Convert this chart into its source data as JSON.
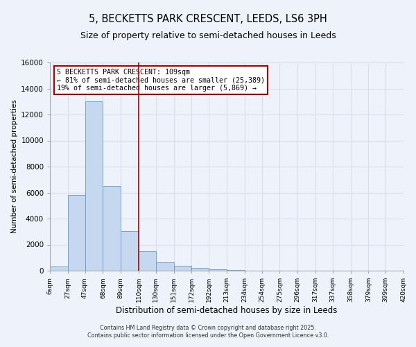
{
  "title": "5, BECKETTS PARK CRESCENT, LEEDS, LS6 3PH",
  "subtitle": "Size of property relative to semi-detached houses in Leeds",
  "xlabel": "Distribution of semi-detached houses by size in Leeds",
  "ylabel": "Number of semi-detached properties",
  "bin_labels": [
    "6sqm",
    "27sqm",
    "47sqm",
    "68sqm",
    "89sqm",
    "110sqm",
    "130sqm",
    "151sqm",
    "172sqm",
    "192sqm",
    "213sqm",
    "234sqm",
    "254sqm",
    "275sqm",
    "296sqm",
    "317sqm",
    "337sqm",
    "358sqm",
    "379sqm",
    "399sqm",
    "420sqm"
  ],
  "bin_edges": [
    6,
    27,
    47,
    68,
    89,
    110,
    130,
    151,
    172,
    192,
    213,
    234,
    254,
    275,
    296,
    317,
    337,
    358,
    379,
    399,
    420
  ],
  "bar_heights": [
    300,
    5800,
    13000,
    6500,
    3050,
    1500,
    650,
    350,
    200,
    100,
    50,
    0,
    0,
    0,
    0,
    0,
    0,
    0,
    0,
    0
  ],
  "bar_color": "#c5d8f0",
  "bar_edge_color": "#6699cc",
  "property_line_x": 110,
  "property_line_color": "#aa0000",
  "annotation_title": "5 BECKETTS PARK CRESCENT: 109sqm",
  "annotation_line1": "← 81% of semi-detached houses are smaller (25,389)",
  "annotation_line2": "19% of semi-detached houses are larger (5,869) →",
  "annotation_box_color": "#ffffff",
  "annotation_box_edge_color": "#aa0000",
  "ylim": [
    0,
    16000
  ],
  "yticks": [
    0,
    2000,
    4000,
    6000,
    8000,
    10000,
    12000,
    14000,
    16000
  ],
  "footer_line1": "Contains HM Land Registry data © Crown copyright and database right 2025.",
  "footer_line2": "Contains public sector information licensed under the Open Government Licence v3.0.",
  "background_color": "#eef2fa",
  "grid_color": "#d8dff0",
  "plot_bg_color": "#eef2fa"
}
